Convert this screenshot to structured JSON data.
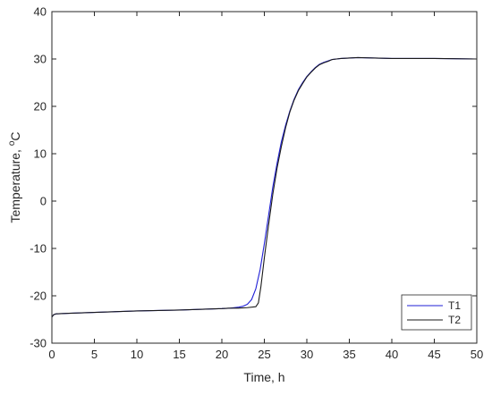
{
  "chart_data": {
    "type": "line",
    "title": "",
    "xlabel": "Time, h",
    "ylabel_main": "Temperature, ",
    "ylabel_sup": "o",
    "ylabel_unit": "C",
    "xlim": [
      0,
      50
    ],
    "ylim": [
      -30,
      40
    ],
    "xticks": [
      0,
      5,
      10,
      15,
      20,
      25,
      30,
      35,
      40,
      45,
      50
    ],
    "yticks": [
      -30,
      -20,
      -10,
      0,
      10,
      20,
      30,
      40
    ],
    "grid": false,
    "legend_position": "bottom-right",
    "series": [
      {
        "name": "T1",
        "color": "#1f1fd6",
        "x": [
          0,
          0.2,
          0.5,
          2,
          5,
          10,
          15,
          20,
          21,
          22,
          22.5,
          23,
          23.5,
          24,
          24.5,
          25,
          25.5,
          26,
          26.5,
          27,
          27.5,
          28,
          28.5,
          29,
          29.5,
          30,
          30.5,
          31,
          31.5,
          32,
          32.5,
          33,
          33.5,
          34,
          35,
          36,
          38,
          40,
          45,
          50
        ],
        "y": [
          -24.5,
          -24,
          -23.8,
          -23.7,
          -23.5,
          -23.2,
          -23,
          -22.7,
          -22.6,
          -22.4,
          -22.2,
          -21.8,
          -20.8,
          -18.5,
          -14.5,
          -9,
          -3,
          3,
          8,
          12.5,
          16,
          19,
          21.5,
          23.5,
          25,
          26.3,
          27.3,
          28.2,
          28.9,
          29.3,
          29.6,
          29.9,
          30,
          30.1,
          30.2,
          30.3,
          30.2,
          30.1,
          30.1,
          30
        ]
      },
      {
        "name": "T2",
        "color": "#1a1a1a",
        "x": [
          0,
          0.2,
          0.5,
          2,
          5,
          10,
          15,
          20,
          21,
          22,
          23,
          24,
          24.3,
          24.6,
          25,
          25.5,
          26,
          26.5,
          27,
          27.5,
          28,
          28.5,
          29,
          29.5,
          30,
          30.5,
          31,
          31.5,
          32,
          32.5,
          33,
          33.5,
          34,
          35,
          36,
          38,
          40,
          45,
          50
        ],
        "y": [
          -24.5,
          -24,
          -23.8,
          -23.7,
          -23.5,
          -23.2,
          -23,
          -22.7,
          -22.6,
          -22.6,
          -22.5,
          -22.3,
          -21.5,
          -18,
          -12,
          -5,
          1.5,
          7,
          11.5,
          15.5,
          18.8,
          21.3,
          23.3,
          24.8,
          26.2,
          27.2,
          28.1,
          28.8,
          29.2,
          29.5,
          29.9,
          30,
          30.1,
          30.2,
          30.3,
          30.2,
          30.1,
          30.1,
          30
        ]
      }
    ]
  }
}
